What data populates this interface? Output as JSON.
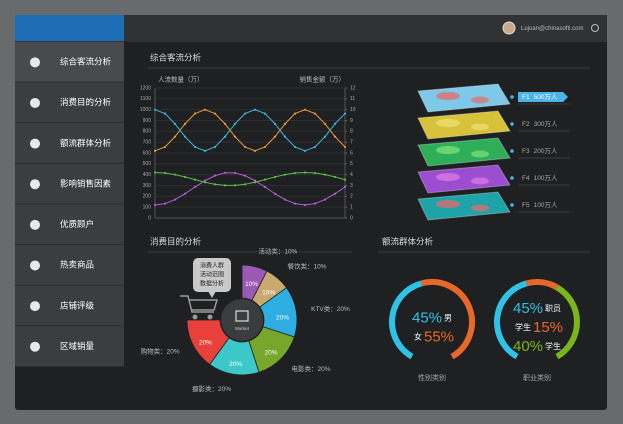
{
  "header": {
    "user_email": "Lujuan@chinasofti.com"
  },
  "sidebar": {
    "items": [
      "综合客流分析",
      "消费目的分析",
      "额流群体分析",
      "影响销售因素",
      "优质顾户",
      "热卖商品",
      "店铺评级",
      "区域销量"
    ]
  },
  "floors": {
    "items": [
      {
        "floor": "F1",
        "label": "500万人"
      },
      {
        "floor": "F2",
        "label": "300万人"
      },
      {
        "floor": "F3",
        "label": "200万人"
      },
      {
        "floor": "F4",
        "label": "100万人"
      },
      {
        "floor": "F5",
        "label": "100万人"
      }
    ]
  },
  "crowd_section": {
    "title": "额流群体分析"
  },
  "chart_data": [
    {
      "type": "line",
      "title": "综合客流分析",
      "ylabel": "人流数量（万）",
      "y2label": "销售金额（万）",
      "ylim": [
        0,
        1200
      ],
      "yticks": [
        0,
        100,
        200,
        300,
        400,
        500,
        600,
        700,
        800,
        900,
        1000,
        1100,
        1200
      ],
      "y2lim": [
        0,
        12
      ],
      "y2ticks": [
        0,
        1,
        2,
        3,
        4,
        5,
        6,
        7,
        8,
        9,
        10,
        11,
        12
      ],
      "grid": true,
      "markers": true,
      "series": [
        {
          "color": "#e89a3c",
          "values": [
            620,
            656,
            751,
            869,
            964,
            1000,
            964,
            869,
            751,
            656,
            620,
            656,
            751,
            869,
            964,
            1000,
            964,
            869,
            751,
            656
          ]
        },
        {
          "color": "#3fb6dc",
          "values": [
            1000,
            964,
            869,
            751,
            656,
            620,
            656,
            751,
            869,
            964,
            1000,
            964,
            869,
            751,
            656,
            620,
            656,
            751,
            869,
            964
          ]
        },
        {
          "color": "#5cc04a",
          "values": [
            420,
            415,
            400,
            379,
            354,
            330,
            311,
            301,
            301,
            311,
            330,
            354,
            379,
            400,
            415,
            420,
            415,
            400,
            379,
            354
          ]
        },
        {
          "color": "#b45fd6",
          "values": [
            120,
            133,
            170,
            224,
            286,
            345,
            391,
            417,
            417,
            391,
            345,
            286,
            224,
            170,
            133,
            120,
            133,
            170,
            224,
            286
          ]
        }
      ]
    },
    {
      "type": "pie",
      "title": "消费目的分析",
      "center_label": "Market",
      "callout": [
        "消费人群",
        "活动范围",
        "数据分析"
      ],
      "categories": [
        "活动类：10%",
        "餐饮类：10%",
        "KTV类：20%",
        "电影类：20%",
        "摄影类：20%",
        "购物类：20%"
      ],
      "values": [
        10,
        10,
        20,
        20,
        20,
        20
      ],
      "value_labels": [
        "10%",
        "10%",
        "20%",
        "20%",
        "20%",
        "20%"
      ],
      "colors": [
        "#9b59b6",
        "#c8a96e",
        "#2eaee0",
        "#77a62a",
        "#3cc8c8",
        "#e8403a"
      ]
    },
    {
      "type": "donut",
      "caption": "性别类别",
      "categories": [
        "男",
        "女"
      ],
      "values": [
        45,
        55
      ],
      "value_labels": [
        "45%",
        "55%"
      ],
      "colors": [
        "#2ec3e6",
        "#e8672a"
      ]
    },
    {
      "type": "donut",
      "caption": "职业类别",
      "categories": [
        "职员",
        "学生",
        "学生"
      ],
      "values": [
        45,
        15,
        40
      ],
      "value_labels": [
        "45%",
        "15%",
        "40%"
      ],
      "colors": [
        "#2ec3e6",
        "#e8672a",
        "#7ab51d"
      ]
    }
  ]
}
